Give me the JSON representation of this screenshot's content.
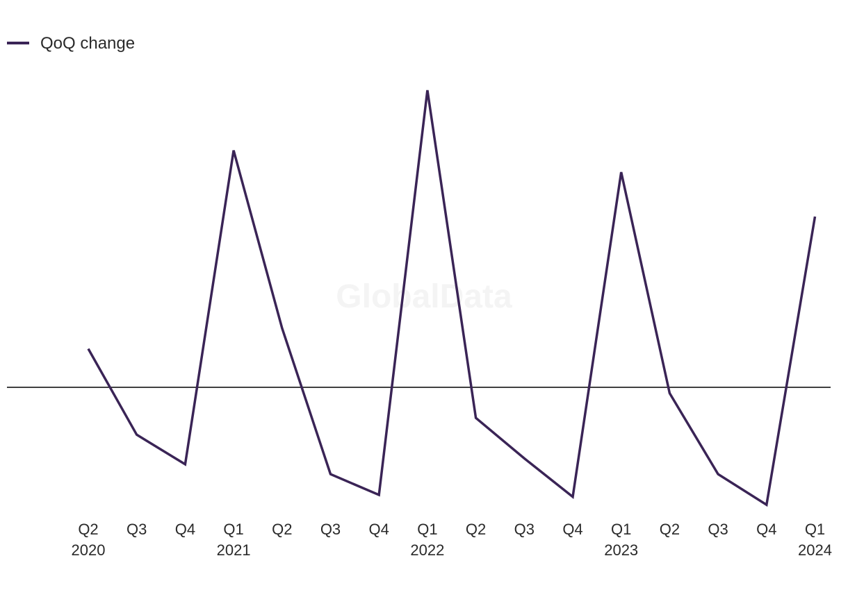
{
  "chart_data": {
    "type": "line",
    "title": "",
    "xlabel": "",
    "ylabel": "",
    "watermark": "GlobalData",
    "legend": {
      "position": "top-left"
    },
    "grid": false,
    "ylim": [
      -9,
      21
    ],
    "zero_line": 0,
    "categories": [
      "Q2 2020",
      "Q3 2020",
      "Q4 2020",
      "Q1 2021",
      "Q2 2021",
      "Q3 2021",
      "Q4 2021",
      "Q1 2022",
      "Q2 2022",
      "Q3 2022",
      "Q4 2022",
      "Q1 2023",
      "Q2 2023",
      "Q3 2023",
      "Q4 2023",
      "Q1 2024"
    ],
    "tick_labels": [
      {
        "q": "Q2",
        "year": "2020"
      },
      {
        "q": "Q3",
        "year": ""
      },
      {
        "q": "Q4",
        "year": ""
      },
      {
        "q": "Q1",
        "year": "2021"
      },
      {
        "q": "Q2",
        "year": ""
      },
      {
        "q": "Q3",
        "year": ""
      },
      {
        "q": "Q4",
        "year": ""
      },
      {
        "q": "Q1",
        "year": "2022"
      },
      {
        "q": "Q2",
        "year": ""
      },
      {
        "q": "Q3",
        "year": ""
      },
      {
        "q": "Q4",
        "year": ""
      },
      {
        "q": "Q1",
        "year": "2023"
      },
      {
        "q": "Q2",
        "year": ""
      },
      {
        "q": "Q3",
        "year": ""
      },
      {
        "q": "Q4",
        "year": ""
      },
      {
        "q": "Q1",
        "year": "2024"
      }
    ],
    "series": [
      {
        "name": "QoQ change",
        "color": "#3a2456",
        "values": [
          3.9,
          -4.8,
          -7.8,
          24.0,
          6.0,
          -8.8,
          -10.9,
          30.1,
          -3.1,
          -7.2,
          -11.1,
          21.8,
          -0.6,
          -8.8,
          -11.9,
          17.3
        ]
      }
    ]
  }
}
